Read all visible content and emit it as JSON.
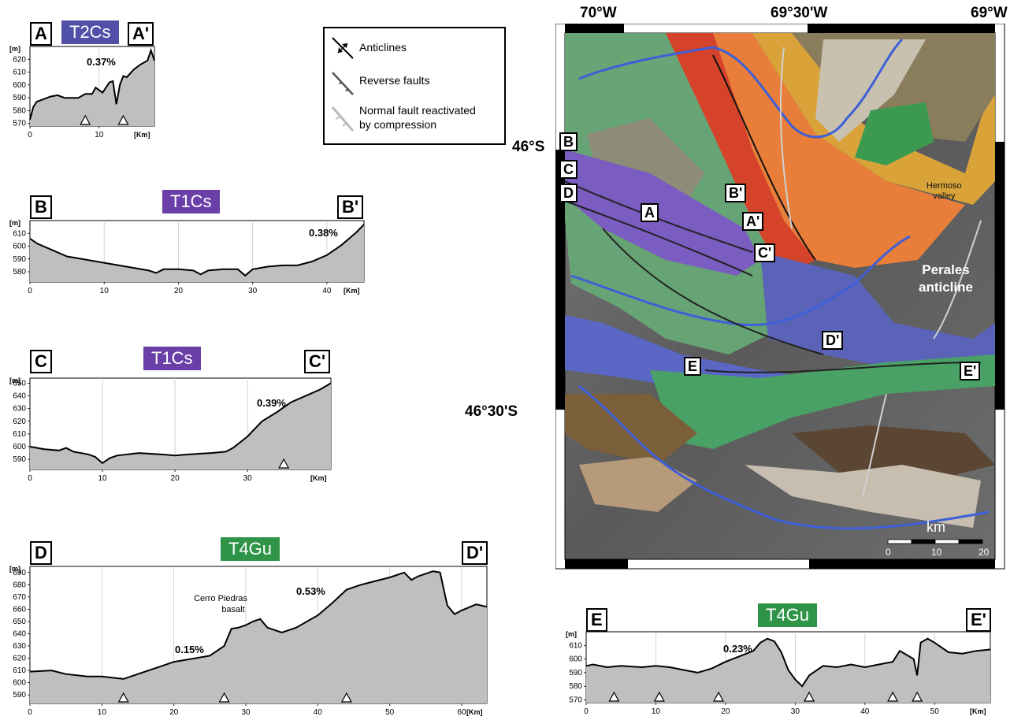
{
  "profiles": [
    {
      "id": "A",
      "start": "A",
      "end": "A'",
      "unit": "T2Cs",
      "unit_color": "#5150a8",
      "yunit": "[m]",
      "xunit": "[Km]",
      "yticks": [
        570,
        580,
        590,
        600,
        610,
        620
      ],
      "xticks": [
        0,
        10
      ],
      "annotations": [
        {
          "text": "0.37%"
        }
      ],
      "triangles_km": [
        8,
        13.5
      ],
      "x": [
        0,
        0.5,
        1,
        2,
        3,
        4,
        5,
        6,
        7,
        8,
        9,
        9.5,
        10,
        10.5,
        11,
        11.5,
        12,
        12.5,
        13,
        13.5,
        14,
        15,
        16,
        17,
        17.5,
        18
      ],
      "y": [
        573,
        583,
        587,
        589,
        591,
        592,
        590,
        590,
        590,
        593,
        593,
        598,
        596,
        594,
        598,
        602,
        603,
        585,
        600,
        607,
        606,
        612,
        616,
        619,
        627,
        619
      ]
    },
    {
      "id": "B",
      "start": "B",
      "end": "B'",
      "unit": "T1Cs",
      "unit_color": "#6b3fa8",
      "yunit": "[m]",
      "xunit": "[Km]",
      "yticks": [
        580,
        590,
        600,
        610
      ],
      "xticks": [
        0,
        10,
        20,
        30,
        40
      ],
      "annotations": [
        {
          "text": "0.38%"
        }
      ],
      "triangles_km": [],
      "x": [
        0,
        1,
        3,
        5,
        8,
        10,
        12,
        14,
        16,
        17,
        18,
        20,
        22,
        23,
        24,
        26,
        28,
        29,
        30,
        32,
        34,
        36,
        38,
        40,
        42,
        43,
        44,
        45
      ],
      "y": [
        606,
        602,
        597,
        592,
        589,
        587,
        585,
        583,
        581,
        579,
        582,
        582,
        581,
        578,
        581,
        582,
        582,
        577,
        582,
        584,
        585,
        585,
        588,
        593,
        601,
        606,
        611,
        617
      ]
    },
    {
      "id": "C",
      "start": "C",
      "end": "C'",
      "unit": "T1Cs",
      "unit_color": "#6b3fa8",
      "yunit": "[m]",
      "xunit": "[Km]",
      "yticks": [
        590,
        600,
        610,
        620,
        630,
        640,
        650
      ],
      "xticks": [
        0,
        10,
        20,
        30
      ],
      "annotations": [
        {
          "text": "0.39%"
        }
      ],
      "triangles_km": [
        35
      ],
      "x": [
        0,
        2,
        4,
        5,
        6,
        8,
        9,
        10,
        11,
        12,
        15,
        18,
        20,
        22,
        25,
        27,
        28,
        30,
        32,
        34,
        36,
        38,
        40,
        41.5
      ],
      "y": [
        600,
        598,
        597,
        599,
        596,
        594,
        592,
        587,
        591,
        593,
        595,
        594,
        593,
        594,
        595,
        596,
        599,
        608,
        620,
        627,
        635,
        640,
        645,
        650
      ]
    },
    {
      "id": "D",
      "start": "D",
      "end": "D'",
      "unit": "T4Gu",
      "unit_color": "#2f9448",
      "yunit": "[m]",
      "xunit": "[Km]",
      "yticks": [
        590,
        600,
        610,
        620,
        630,
        640,
        650,
        660,
        670,
        680,
        690
      ],
      "xticks": [
        0,
        10,
        20,
        30,
        40,
        50,
        60
      ],
      "annotations": [
        {
          "text": "0.15%"
        },
        {
          "text": "0.53%"
        },
        {
          "text": "Cerro Piedras"
        },
        {
          "text": "basalt"
        }
      ],
      "triangles_km": [
        13,
        27,
        44
      ],
      "x": [
        0,
        3,
        5,
        8,
        10,
        13,
        15,
        18,
        20,
        22,
        25,
        27,
        28,
        29,
        30,
        31,
        32,
        33,
        35,
        37,
        40,
        42,
        44,
        46,
        48,
        50,
        52,
        53,
        54,
        55,
        56,
        57,
        58,
        59,
        60,
        62,
        63.5
      ],
      "y": [
        609,
        610,
        607,
        605,
        605,
        603,
        607,
        613,
        617,
        619,
        622,
        630,
        644,
        645,
        647,
        650,
        652,
        645,
        641,
        645,
        655,
        665,
        676,
        680,
        683,
        686,
        690,
        684,
        687,
        689,
        691,
        690,
        663,
        656,
        659,
        664,
        662
      ]
    },
    {
      "id": "E",
      "start": "E",
      "end": "E'",
      "unit": "T4Gu",
      "unit_color": "#2f9448",
      "yunit": "[m]",
      "xunit": "[Km]",
      "yticks": [
        570,
        580,
        590,
        600,
        610
      ],
      "xticks": [
        0,
        10,
        20,
        30,
        40,
        50
      ],
      "annotations": [
        {
          "text": "0.23%"
        }
      ],
      "triangles_km": [
        4,
        10.5,
        19,
        32,
        44,
        47.5
      ],
      "x": [
        0,
        1,
        3,
        5,
        8,
        10,
        12,
        14,
        16,
        18,
        20,
        22,
        24,
        25,
        26,
        27,
        28,
        29,
        30,
        31,
        32,
        34,
        36,
        38,
        40,
        42,
        44,
        45,
        46,
        47,
        47.5,
        48,
        49,
        50,
        52,
        54,
        56,
        58
      ],
      "y": [
        595,
        596,
        594,
        595,
        594,
        595,
        594,
        592,
        590,
        593,
        598,
        602,
        606,
        612,
        615,
        613,
        605,
        592,
        585,
        580,
        588,
        595,
        594,
        596,
        594,
        596,
        598,
        606,
        603,
        600,
        588,
        612,
        615,
        612,
        605,
        604,
        606,
        607
      ]
    }
  ],
  "legend": {
    "items": [
      {
        "label": "Anticlines",
        "icon": "anticline-icon"
      },
      {
        "label": "Reverse faults",
        "icon": "reverse-fault-icon"
      },
      {
        "label_line1": "Normal fault reactivated",
        "label_line2": "by compression",
        "icon": "normal-fault-icon"
      }
    ]
  },
  "map": {
    "top_coords": [
      "70°W",
      "69°30'W",
      "69°W"
    ],
    "left_coords": [
      "46°S",
      "46°30'S"
    ],
    "section_labels": [
      "B",
      "C",
      "D",
      "A",
      "B'",
      "A'",
      "C'",
      "D'",
      "E",
      "E'"
    ],
    "place_labels": [
      {
        "line1": "Hermoso",
        "line2": "valley"
      },
      {
        "line1": "Perales",
        "line2": "anticline"
      }
    ],
    "scalebar": {
      "unit": "km",
      "ticks": [
        "0",
        "10",
        "20"
      ]
    }
  }
}
